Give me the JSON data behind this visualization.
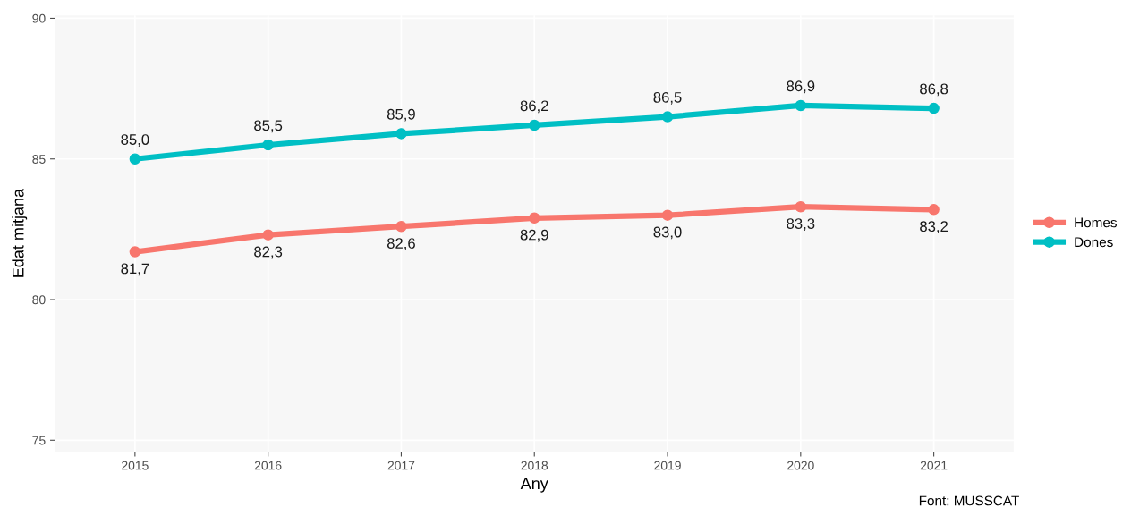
{
  "chart_data": {
    "type": "line",
    "xlabel": "Any",
    "ylabel": "Edat mitjana",
    "categories": [
      "2015",
      "2016",
      "2017",
      "2018",
      "2019",
      "2020",
      "2021"
    ],
    "series": [
      {
        "name": "Homes",
        "color": "#f8766d",
        "values": [
          81.7,
          82.3,
          82.6,
          82.9,
          83.0,
          83.3,
          83.2
        ],
        "value_labels": [
          "81,7",
          "82,3",
          "82,6",
          "82,9",
          "83,0",
          "83,3",
          "83,2"
        ]
      },
      {
        "name": "Dones",
        "color": "#00bfc4",
        "values": [
          85.0,
          85.5,
          85.9,
          86.2,
          86.5,
          86.9,
          86.8
        ],
        "value_labels": [
          "85,0",
          "85,5",
          "85,9",
          "86,2",
          "86,5",
          "86,9",
          "86,8"
        ]
      }
    ],
    "ylim": [
      74.6,
      90.1
    ],
    "yticks": [
      75,
      80,
      85,
      90
    ],
    "grid": true,
    "legend": "right",
    "marker": "circle",
    "line_style": "solid",
    "annotations": [
      "Font: MUSSCAT"
    ]
  }
}
